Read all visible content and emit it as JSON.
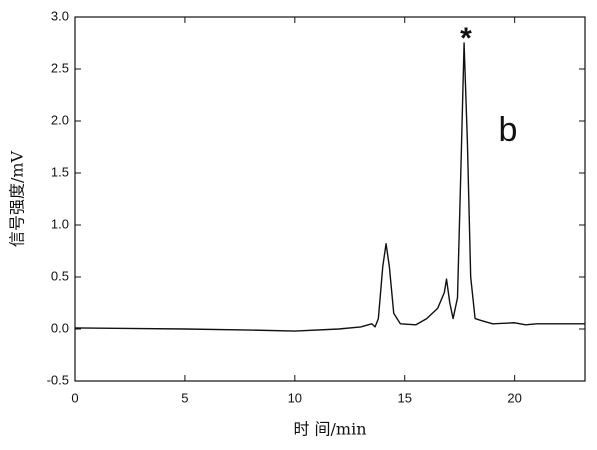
{
  "chart_data": {
    "type": "line",
    "x_label": "时 间/min",
    "y_label": "信号强度/mV",
    "annotations": [
      "*",
      "b"
    ],
    "x": [
      0,
      5,
      8,
      10,
      12,
      13,
      13.5,
      13.65,
      13.8,
      14.0,
      14.15,
      14.3,
      14.5,
      14.8,
      15.5,
      16,
      16.5,
      16.8,
      16.9,
      17.05,
      17.2,
      17.4,
      17.55,
      17.7,
      17.85,
      18.0,
      18.2,
      18.5,
      19,
      20,
      20.5,
      21,
      23.2
    ],
    "values": [
      0.01,
      0.0,
      -0.01,
      -0.02,
      0.0,
      0.02,
      0.05,
      0.02,
      0.1,
      0.6,
      0.82,
      0.6,
      0.15,
      0.05,
      0.04,
      0.1,
      0.2,
      0.35,
      0.48,
      0.25,
      0.1,
      0.3,
      1.5,
      2.75,
      1.8,
      0.5,
      0.1,
      0.08,
      0.05,
      0.06,
      0.04,
      0.05,
      0.05
    ],
    "color": "#111111",
    "xlim": [
      0,
      23.2
    ],
    "xticks": [
      0,
      5,
      10,
      15,
      20
    ],
    "ylim": [
      -0.5,
      3.0
    ],
    "yticks": [
      -0.5,
      {
        "value": 0,
        "label": "0.0"
      },
      0.5,
      {
        "value": 1,
        "label": "1.0"
      },
      1.5,
      {
        "value": 2,
        "label": "2.0"
      },
      2.5,
      {
        "value": 3,
        "label": "3.0"
      }
    ]
  }
}
